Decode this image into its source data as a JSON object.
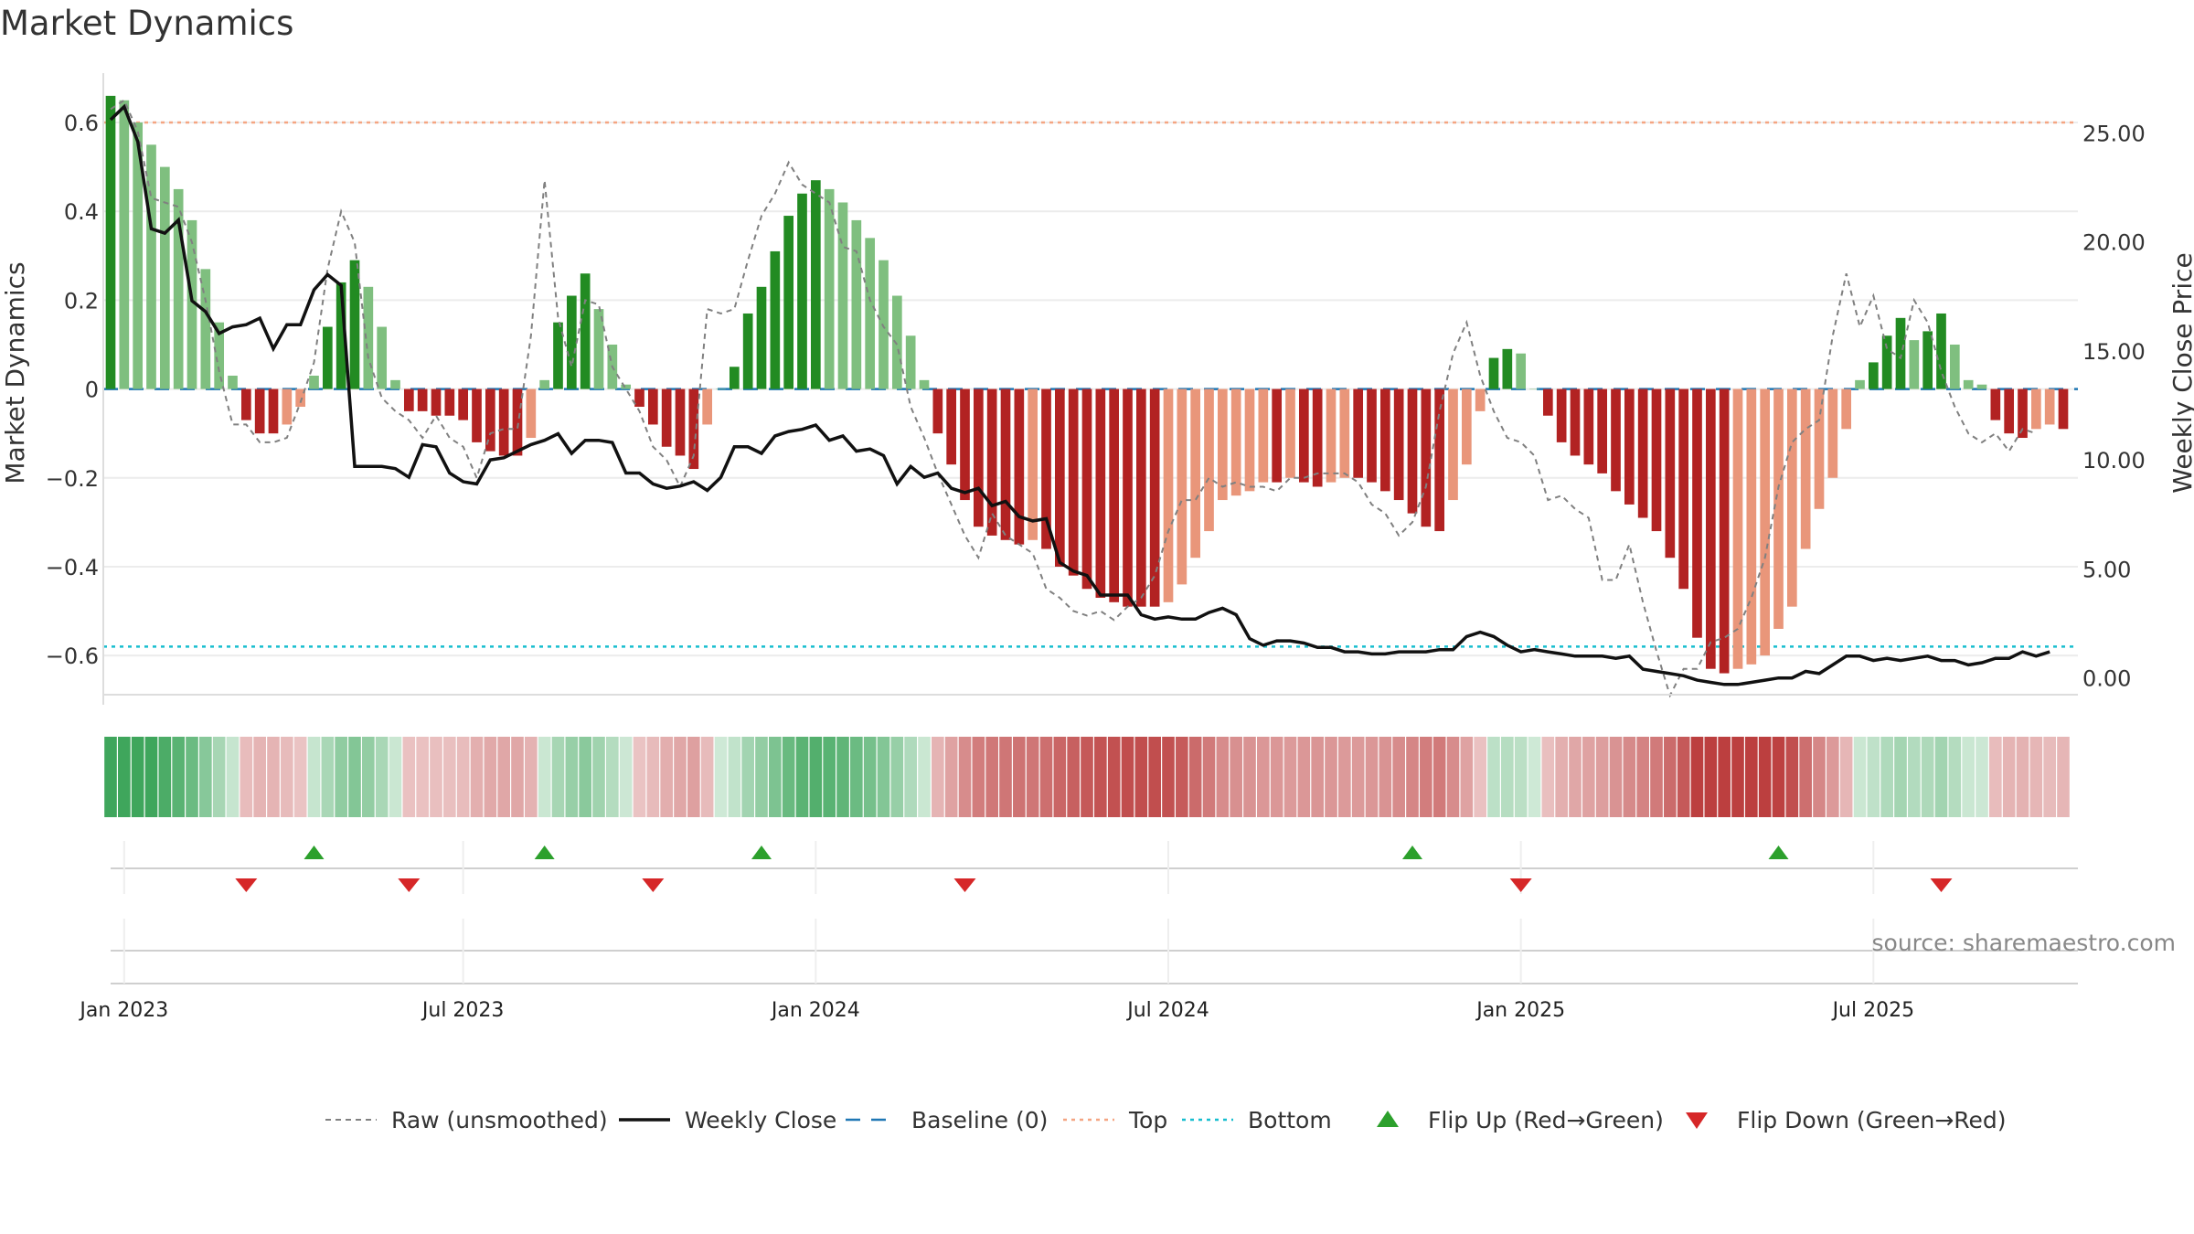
{
  "chart_data": {
    "type": "bar",
    "title": "Market Dynamics",
    "ylabel": "Market Dynamics",
    "y2label": "Weekly Close Price",
    "source": "source: sharemaestro.com",
    "ylim": [
      -0.68,
      0.67
    ],
    "y2lim": [
      -0.6,
      26.9
    ],
    "yticks": [
      {
        "value": 0.6,
        "label": "0.6"
      },
      {
        "value": 0.4,
        "label": "0.4"
      },
      {
        "value": 0.2,
        "label": "0.2"
      },
      {
        "value": 0,
        "label": "0"
      },
      {
        "value": -0.2,
        "label": "−0.2"
      },
      {
        "value": -0.4,
        "label": "−0.4"
      },
      {
        "value": -0.6,
        "label": "−0.6"
      }
    ],
    "y2ticks": [
      {
        "value": 25,
        "label": "25.00"
      },
      {
        "value": 20,
        "label": "20.00"
      },
      {
        "value": 15,
        "label": "15.00"
      },
      {
        "value": 10,
        "label": "10.00"
      },
      {
        "value": 5,
        "label": "5.00"
      },
      {
        "value": 0,
        "label": "0.00"
      }
    ],
    "xticks": [
      {
        "week": 1,
        "label": "Jan 2023"
      },
      {
        "week": 26,
        "label": "Jul 2023"
      },
      {
        "week": 52,
        "label": "Jan 2024"
      },
      {
        "week": 78,
        "label": "Jul 2024"
      },
      {
        "week": 104,
        "label": "Jan 2025"
      },
      {
        "week": 130,
        "label": "Jul 2025"
      }
    ],
    "top_level": 0.6,
    "bottom_level": -0.58,
    "baseline": 0,
    "weeks_start": "2022-12-26",
    "week_count": 144,
    "dynamics": [
      0.66,
      0.65,
      0.6,
      0.55,
      0.5,
      0.45,
      0.38,
      0.27,
      0.15,
      0.03,
      -0.07,
      -0.1,
      -0.1,
      -0.08,
      -0.04,
      0.03,
      0.14,
      0.24,
      0.29,
      0.23,
      0.14,
      0.02,
      -0.05,
      -0.05,
      -0.06,
      -0.06,
      -0.07,
      -0.12,
      -0.14,
      -0.15,
      -0.15,
      -0.11,
      0.02,
      0.15,
      0.21,
      0.26,
      0.18,
      0.1,
      0.01,
      -0.04,
      -0.08,
      -0.13,
      -0.15,
      -0.18,
      -0.08,
      0.0,
      0.05,
      0.17,
      0.23,
      0.31,
      0.39,
      0.44,
      0.47,
      0.45,
      0.42,
      0.38,
      0.34,
      0.29,
      0.21,
      0.12,
      0.02,
      -0.1,
      -0.17,
      -0.25,
      -0.31,
      -0.33,
      -0.34,
      -0.35,
      -0.34,
      -0.36,
      -0.4,
      -0.42,
      -0.45,
      -0.47,
      -0.48,
      -0.49,
      -0.49,
      -0.49,
      -0.48,
      -0.44,
      -0.38,
      -0.32,
      -0.25,
      -0.24,
      -0.23,
      -0.21,
      -0.21,
      -0.2,
      -0.21,
      -0.22,
      -0.21,
      -0.2,
      -0.2,
      -0.21,
      -0.23,
      -0.25,
      -0.28,
      -0.31,
      -0.32,
      -0.25,
      -0.17,
      -0.05,
      0.07,
      0.09,
      0.08,
      0.0,
      -0.06,
      -0.12,
      -0.15,
      -0.17,
      -0.19,
      -0.23,
      -0.26,
      -0.29,
      -0.32,
      -0.38,
      -0.45,
      -0.56,
      -0.63,
      -0.64,
      -0.63,
      -0.62,
      -0.6,
      -0.54,
      -0.49,
      -0.36,
      -0.27,
      -0.2,
      -0.09,
      0.02,
      0.06,
      0.12,
      0.16,
      0.11,
      0.13,
      0.17,
      0.1,
      0.02,
      0.01,
      -0.07,
      -0.1,
      -0.11,
      -0.09,
      -0.08,
      -0.09
    ],
    "raw": [
      0.63,
      0.65,
      0.58,
      0.43,
      0.42,
      0.41,
      0.33,
      0.2,
      0.04,
      -0.08,
      -0.08,
      -0.12,
      -0.12,
      -0.11,
      -0.03,
      0.06,
      0.27,
      0.4,
      0.33,
      0.07,
      -0.02,
      -0.05,
      -0.07,
      -0.11,
      -0.06,
      -0.11,
      -0.13,
      -0.2,
      -0.1,
      -0.09,
      -0.09,
      0.12,
      0.47,
      0.16,
      0.05,
      0.2,
      0.19,
      0.05,
      0.0,
      -0.05,
      -0.13,
      -0.16,
      -0.22,
      -0.15,
      0.18,
      0.17,
      0.18,
      0.29,
      0.39,
      0.44,
      0.51,
      0.46,
      0.44,
      0.42,
      0.32,
      0.31,
      0.2,
      0.14,
      0.1,
      -0.04,
      -0.11,
      -0.19,
      -0.26,
      -0.33,
      -0.38,
      -0.28,
      -0.33,
      -0.35,
      -0.37,
      -0.45,
      -0.47,
      -0.5,
      -0.51,
      -0.5,
      -0.52,
      -0.49,
      -0.47,
      -0.42,
      -0.32,
      -0.25,
      -0.25,
      -0.2,
      -0.22,
      -0.21,
      -0.22,
      -0.22,
      -0.23,
      -0.2,
      -0.2,
      -0.19,
      -0.19,
      -0.19,
      -0.21,
      -0.26,
      -0.28,
      -0.33,
      -0.3,
      -0.22,
      -0.05,
      0.08,
      0.15,
      0.03,
      -0.05,
      -0.11,
      -0.12,
      -0.15,
      -0.25,
      -0.24,
      -0.27,
      -0.29,
      -0.43,
      -0.43,
      -0.35,
      -0.48,
      -0.59,
      -0.69,
      -0.63,
      -0.63,
      -0.57,
      -0.56,
      -0.54,
      -0.47,
      -0.38,
      -0.22,
      -0.12,
      -0.09,
      -0.07,
      0.12,
      0.26,
      0.14,
      0.21,
      0.09,
      0.07,
      0.2,
      0.15,
      0.04,
      -0.04,
      -0.1,
      -0.12,
      -0.1,
      -0.14,
      -0.09,
      -0.1
    ],
    "weekly_close": [
      25.6,
      26.2,
      24.6,
      20.6,
      20.4,
      21.0,
      17.3,
      16.8,
      15.8,
      16.1,
      16.2,
      16.5,
      15.1,
      16.2,
      16.2,
      17.8,
      18.5,
      18.0,
      9.7,
      9.7,
      9.7,
      9.6,
      9.2,
      10.7,
      10.6,
      9.4,
      9.0,
      8.9,
      10.0,
      10.1,
      10.4,
      10.7,
      10.9,
      11.2,
      10.3,
      10.9,
      10.9,
      10.8,
      9.4,
      9.4,
      8.9,
      8.7,
      8.8,
      9.0,
      8.6,
      9.2,
      10.6,
      10.6,
      10.3,
      11.1,
      11.3,
      11.4,
      11.6,
      10.9,
      11.1,
      10.4,
      10.5,
      10.2,
      8.9,
      9.7,
      9.2,
      9.4,
      8.7,
      8.5,
      8.7,
      7.9,
      8.1,
      7.4,
      7.2,
      7.3,
      5.3,
      4.9,
      4.7,
      3.8,
      3.8,
      3.8,
      2.9,
      2.7,
      2.8,
      2.7,
      2.7,
      3.0,
      3.2,
      2.9,
      1.8,
      1.5,
      1.7,
      1.7,
      1.6,
      1.4,
      1.4,
      1.2,
      1.2,
      1.1,
      1.1,
      1.2,
      1.2,
      1.2,
      1.3,
      1.3,
      1.9,
      2.1,
      1.9,
      1.5,
      1.2,
      1.3,
      1.2,
      1.1,
      1.0,
      1.0,
      1.0,
      0.9,
      1.0,
      0.4,
      0.3,
      0.2,
      0.1,
      -0.1,
      -0.2,
      -0.3,
      -0.3,
      -0.2,
      -0.1,
      0.0,
      0.0,
      0.3,
      0.2,
      0.6,
      1.0,
      1.0,
      0.8,
      0.9,
      0.8,
      0.9,
      1.0,
      0.8,
      0.8,
      0.6,
      0.7,
      0.9,
      0.9,
      1.2,
      1.0,
      1.2
    ],
    "flips_up": [
      15,
      32,
      48,
      96,
      123
    ],
    "flips_down": [
      10,
      22,
      40,
      63,
      104,
      135
    ],
    "legend": [
      {
        "label": "Raw (unsmoothed)",
        "style": "dashed-gray"
      },
      {
        "label": "Weekly Close",
        "style": "solid-black"
      },
      {
        "label": "Baseline (0)",
        "style": "dashed-blue"
      },
      {
        "label": "Top",
        "style": "dotted-orange"
      },
      {
        "label": "Bottom",
        "style": "dotted-cyan"
      },
      {
        "label": "Flip Up (Red→Green)",
        "style": "triangle-up-green"
      },
      {
        "label": "Flip Down (Green→Red)",
        "style": "triangle-down-red"
      }
    ],
    "grid": true
  },
  "colors": {
    "dark_green": "#228b22",
    "light_green": "#7fbf7f",
    "dark_red": "#b22222",
    "light_red": "#e9967a",
    "top_line": "#f4a582",
    "bottom_line": "#17becf",
    "baseline": "#1f77b4",
    "raw_line": "#808080",
    "close_line": "#111111",
    "flip_up": "#2ca02c",
    "flip_down": "#d62728"
  }
}
